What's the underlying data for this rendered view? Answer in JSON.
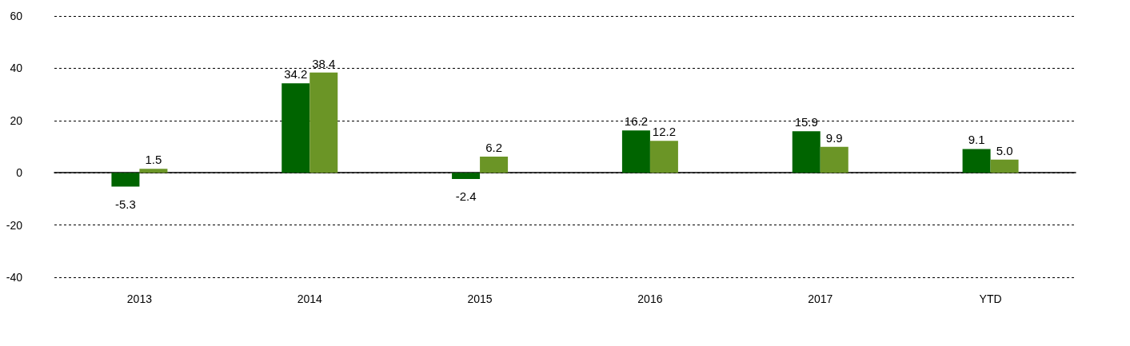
{
  "chart_data": {
    "type": "bar",
    "categories": [
      "2013",
      "2014",
      "2015",
      "2016",
      "2017",
      "YTD"
    ],
    "series": [
      {
        "color": "#006400",
        "values": [
          -5.3,
          34.2,
          -2.4,
          16.2,
          15.9,
          9.1
        ],
        "value_labels": [
          "-5.3",
          "34.2",
          "-2.4",
          "16.2",
          "15.9",
          "9.1"
        ]
      },
      {
        "color": "#6b9526",
        "values": [
          1.5,
          38.4,
          6.2,
          12.2,
          9.9,
          5.0
        ],
        "value_labels": [
          "1.5",
          "38.4",
          "6.2",
          "12.2",
          "9.9",
          "5.0"
        ]
      }
    ],
    "ylim": [
      -40,
      60
    ],
    "yticks": [
      -40,
      -20,
      0,
      20,
      40,
      60
    ],
    "grid": "y"
  }
}
